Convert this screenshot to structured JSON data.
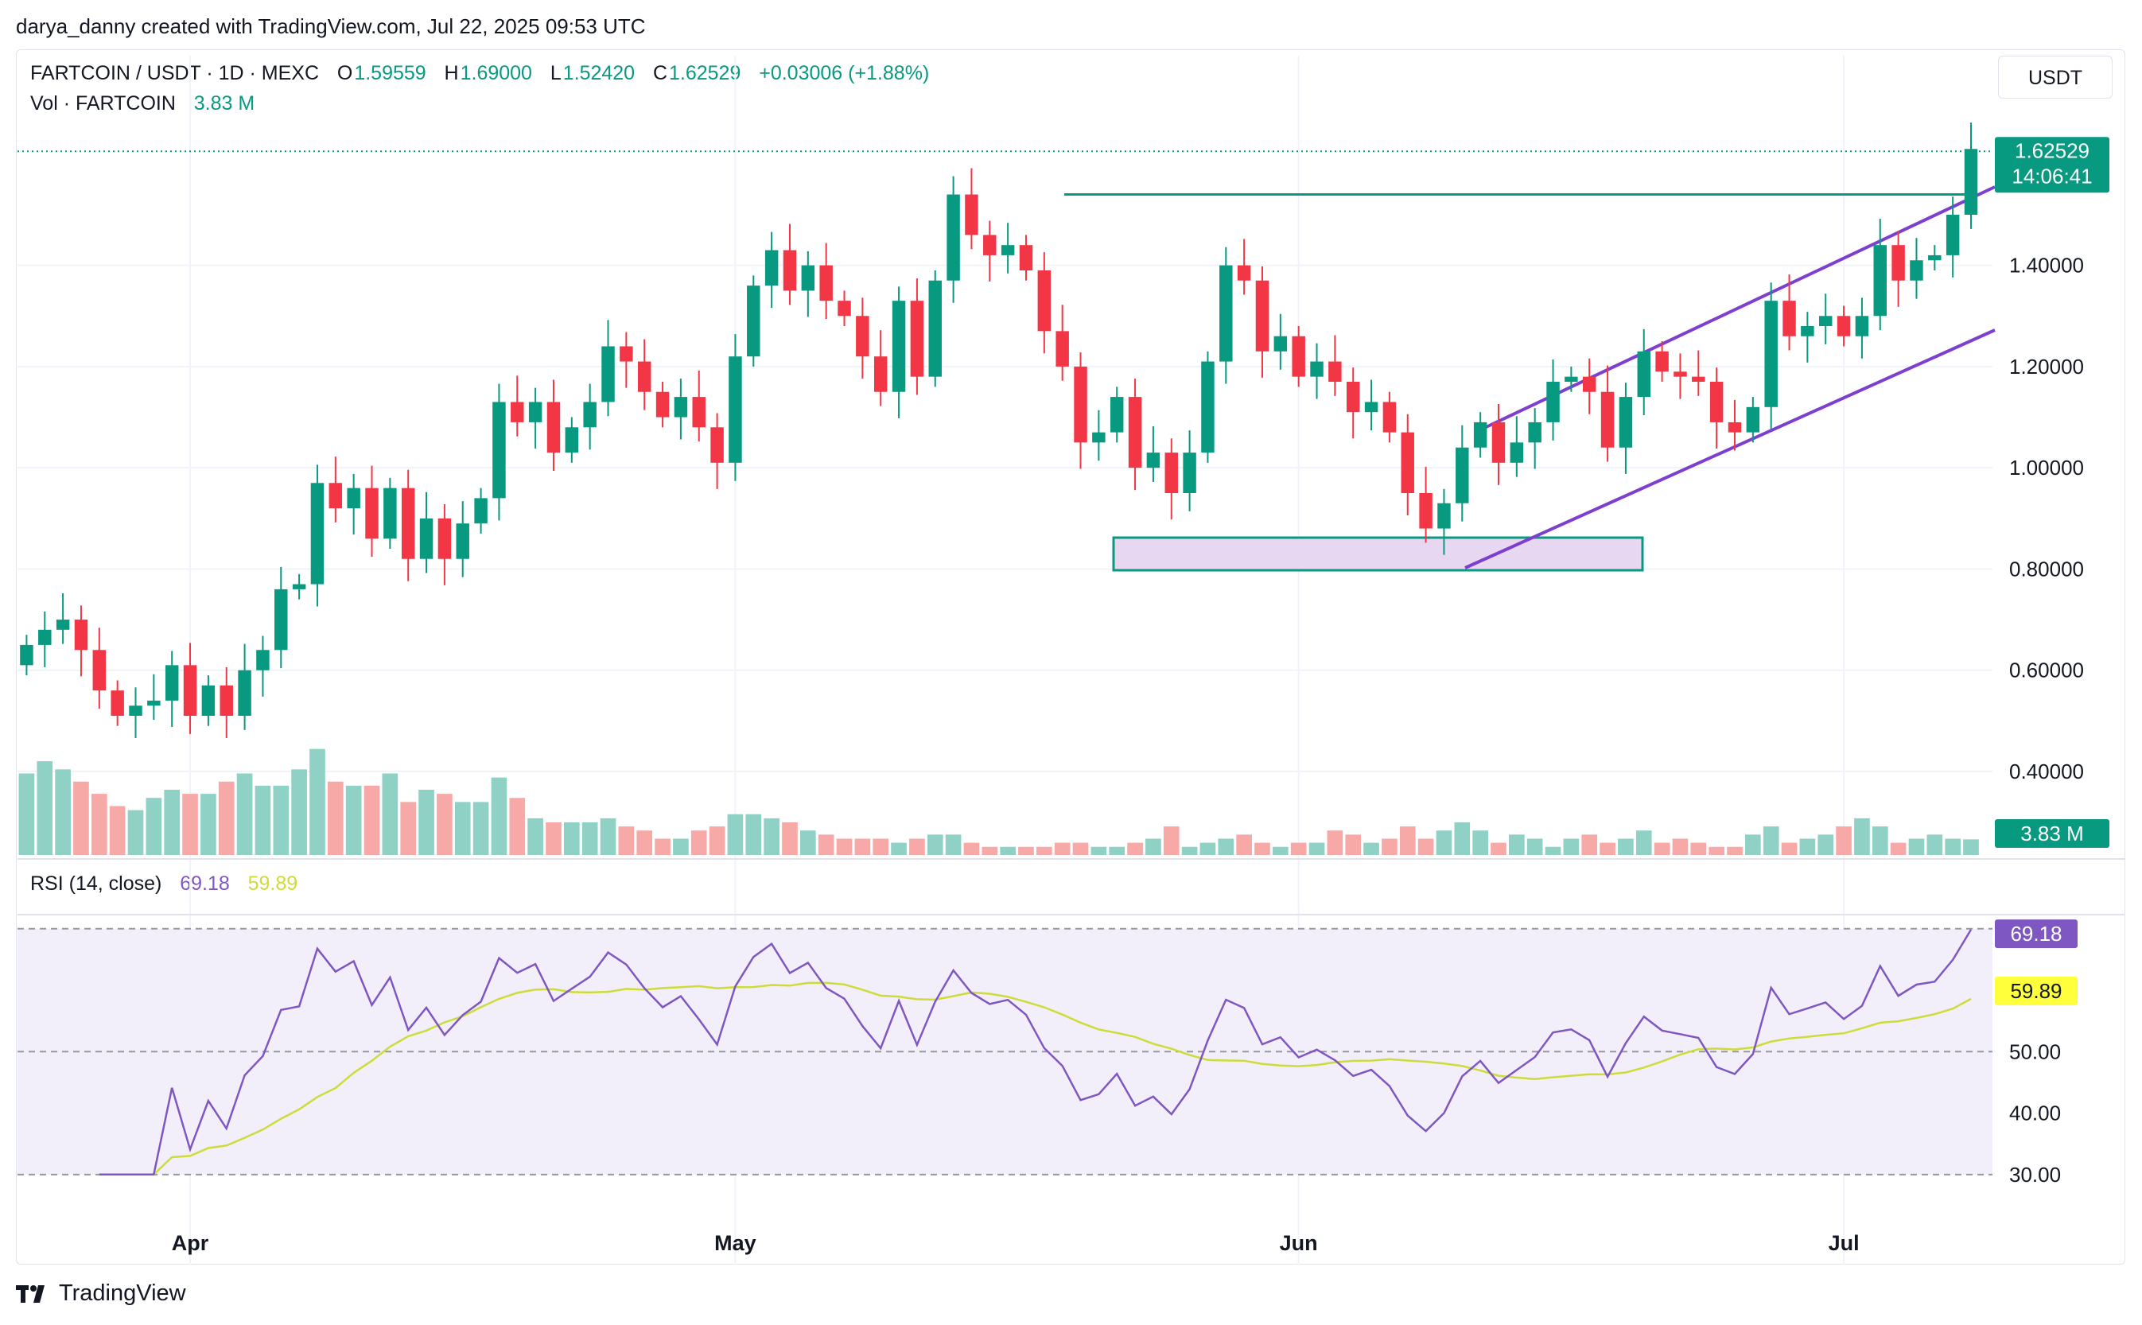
{
  "header": {
    "text": "darya_danny created with TradingView.com, Jul 22, 2025 09:53 UTC"
  },
  "legend": {
    "symbol": "FARTCOIN / USDT · 1D · MEXC",
    "o_label": "O",
    "o_value": "1.59559",
    "h_label": "H",
    "h_value": "1.69000",
    "l_label": "L",
    "l_value": "1.52420",
    "c_label": "C",
    "c_value": "1.62529",
    "change": "+0.03006 (+1.88%)",
    "vol_label": "Vol · FARTCOIN",
    "vol_value": "3.83 M"
  },
  "currency_button": "USDT",
  "brand": "TradingView",
  "colors": {
    "up": "#089981",
    "down": "#f23645",
    "up_vol": "#8fd1c5",
    "down_vol": "#f7a9a7",
    "channel": "#7e3fd1",
    "resistance": "#089981",
    "rsi": "#7e57c2",
    "rsi_ma": "#cddc39",
    "support_zone": "#e8d7f0"
  },
  "chart_data": [
    {
      "type": "candlestick",
      "title": "FARTCOIN / USDT · 1D · MEXC",
      "timeframe": "1D",
      "x_start": "2025-03-23",
      "x_end": "2025-07-22",
      "x_ticks": [
        "Apr",
        "May",
        "Jun",
        "Jul"
      ],
      "y_ticks": [
        "0.40000",
        "0.60000",
        "0.80000",
        "1.00000",
        "1.20000",
        "1.40000"
      ],
      "ylim": [
        0.29,
        1.72
      ],
      "price_tag": "1.62529",
      "countdown": "14:06:41",
      "volume_tag": "3.83 M",
      "closes": [
        0.65,
        0.68,
        0.7,
        0.64,
        0.56,
        0.51,
        0.53,
        0.54,
        0.61,
        0.51,
        0.57,
        0.51,
        0.6,
        0.64,
        0.76,
        0.77,
        0.97,
        0.92,
        0.96,
        0.86,
        0.96,
        0.82,
        0.9,
        0.82,
        0.89,
        0.94,
        1.13,
        1.09,
        1.13,
        1.03,
        1.08,
        1.13,
        1.24,
        1.21,
        1.15,
        1.1,
        1.14,
        1.08,
        1.01,
        1.22,
        1.36,
        1.43,
        1.35,
        1.4,
        1.33,
        1.3,
        1.22,
        1.15,
        1.33,
        1.18,
        1.37,
        1.54,
        1.46,
        1.42,
        1.44,
        1.39,
        1.27,
        1.2,
        1.05,
        1.07,
        1.14,
        1.0,
        1.03,
        0.95,
        1.03,
        1.21,
        1.4,
        1.37,
        1.23,
        1.26,
        1.18,
        1.21,
        1.17,
        1.11,
        1.13,
        1.07,
        0.95,
        0.88,
        0.93,
        1.04,
        1.09,
        1.01,
        1.05,
        1.09,
        1.17,
        1.18,
        1.15,
        1.04,
        1.14,
        1.23,
        1.19,
        1.18,
        1.17,
        1.09,
        1.07,
        1.12,
        1.33,
        1.26,
        1.28,
        1.3,
        1.26,
        1.3,
        1.44,
        1.37,
        1.41,
        1.42,
        1.5,
        1.63
      ],
      "volumes_m": [
        20,
        23,
        21,
        18,
        15,
        12,
        11,
        14,
        16,
        15,
        15,
        18,
        20,
        17,
        17,
        21,
        26,
        18,
        17,
        17,
        20,
        13,
        16,
        15,
        13,
        13,
        19,
        14,
        9,
        8,
        8,
        8,
        9,
        7,
        6,
        4,
        4,
        6,
        7,
        10,
        10,
        9,
        8,
        6,
        5,
        4,
        4,
        4,
        3,
        4,
        5,
        5,
        3,
        2,
        2,
        2,
        2,
        3,
        3,
        2,
        2,
        3,
        4,
        7,
        2,
        3,
        4,
        5,
        3,
        2,
        3,
        3,
        6,
        5,
        3,
        4,
        7,
        4,
        6,
        8,
        6,
        3,
        5,
        4,
        2,
        4,
        5,
        3,
        4,
        6,
        3,
        4,
        3,
        2,
        2,
        5,
        7,
        3,
        4,
        5,
        7,
        9,
        7,
        3,
        4,
        5,
        4,
        3.83
      ],
      "volume_ylim": [
        0,
        40
      ]
    },
    {
      "type": "line",
      "title": "RSI (14, close)",
      "series": [
        {
          "name": "RSI (14, close)",
          "last": "69.18"
        },
        {
          "name": "RSI MA",
          "last": "59.89"
        }
      ],
      "y_ticks": [
        "30.00",
        "40.00",
        "50.00",
        "60.00",
        "70.00"
      ],
      "bands": [
        30,
        70
      ],
      "ylim": [
        27,
        71
      ]
    }
  ],
  "rsi_legend": {
    "label": "RSI (14, close)",
    "rsi_value": "69.18",
    "ma_value": "59.89"
  }
}
